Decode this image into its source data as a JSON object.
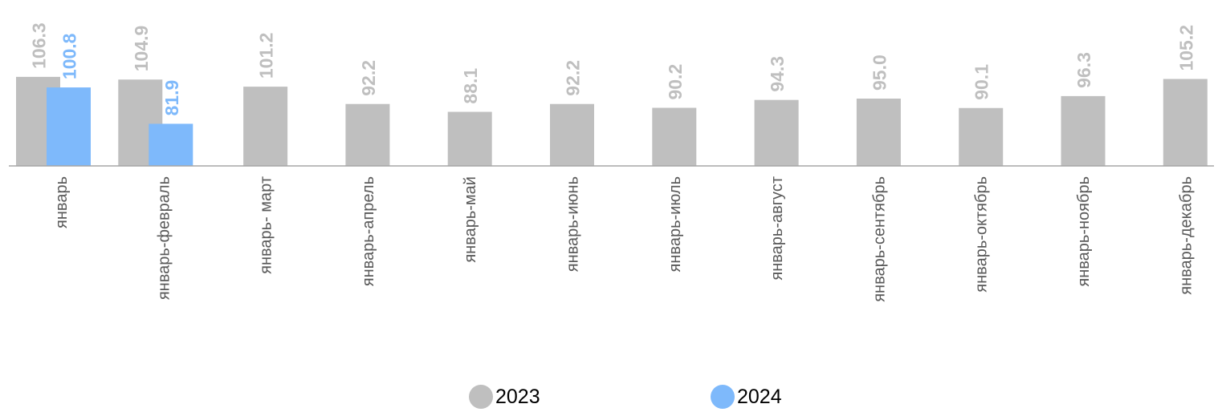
{
  "chart_data": {
    "type": "bar",
    "title": "",
    "xlabel": "",
    "ylabel": "",
    "categories": [
      "январь",
      "январь-февраль",
      "январь- март",
      "январь-апрель",
      "январь-май",
      "январь-июнь",
      "январь-июль",
      "январь-август",
      "январь-сентябрь",
      "январь-октябрь",
      "январь-ноябрь",
      "январь-декабрь"
    ],
    "series": [
      {
        "name": "2023",
        "color": "#bfbfbf",
        "label_color": "#bfbfbf",
        "values": [
          106.3,
          104.9,
          101.2,
          92.2,
          88.1,
          92.2,
          90.2,
          94.3,
          95.0,
          90.1,
          96.3,
          105.2
        ]
      },
      {
        "name": "2024",
        "color": "#7eb9fb",
        "label_color": "#7eb9fb",
        "values": [
          100.8,
          81.9,
          null,
          null,
          null,
          null,
          null,
          null,
          null,
          null,
          null,
          null
        ]
      }
    ],
    "ylim": [
      60,
      120
    ],
    "grid": false,
    "legend": "bottom-center",
    "category_label_color": "#595959",
    "axis_color": "#a6a6a6"
  }
}
